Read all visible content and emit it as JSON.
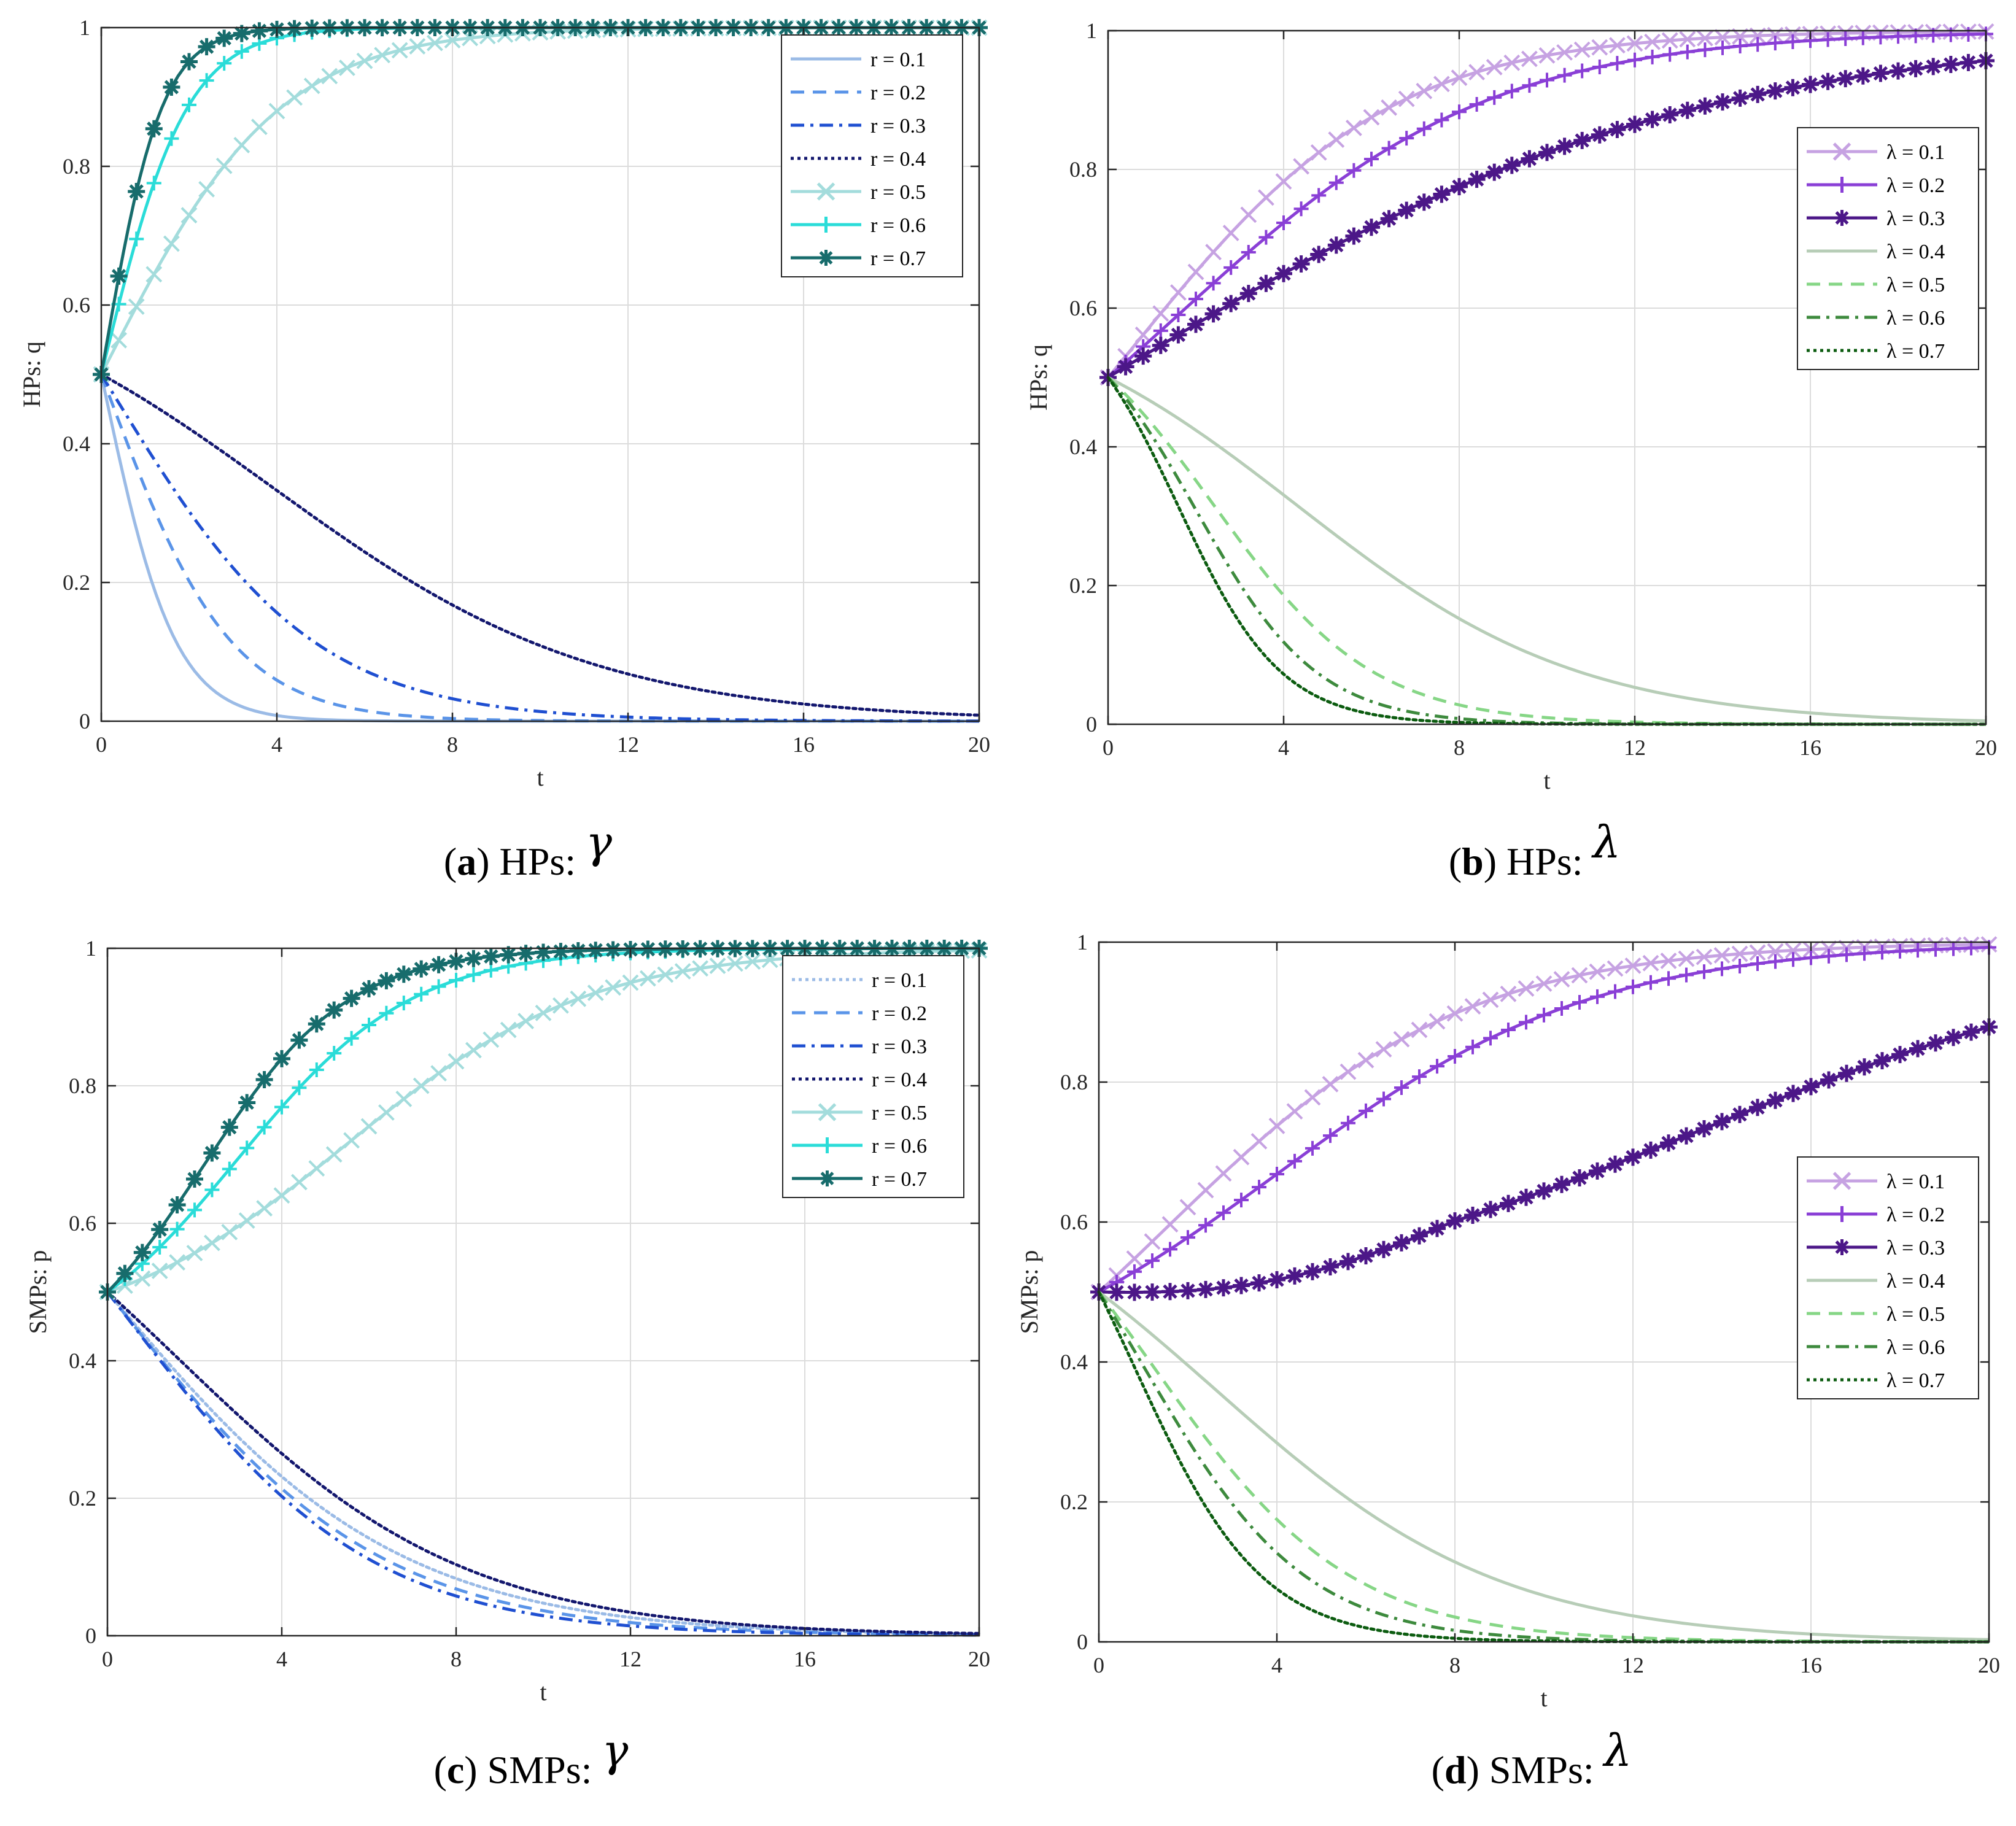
{
  "palette": {
    "r": [
      "#9bbbe6",
      "#5a94e8",
      "#1f4fd1",
      "#13176e",
      "#a3dcdc",
      "#2adcd8",
      "#176c6c"
    ],
    "lambda": [
      "#c6a2e2",
      "#8a3fd6",
      "#4c1788",
      "#b7cdb7",
      "#86d686",
      "#3d8a3d",
      "#0c5c10"
    ]
  },
  "chart_data": [
    {
      "id": "a",
      "type": "line",
      "caption": {
        "letter": "a",
        "text": "HPs:",
        "symbol": "γ"
      },
      "xlabel": "t",
      "ylabel": "HPs: q",
      "xlim": [
        0,
        20
      ],
      "ylim": [
        0,
        1
      ],
      "xticks": [
        "0",
        "4",
        "8",
        "12",
        "16",
        "20"
      ],
      "yticks": [
        "0",
        "0.2",
        "0.4",
        "0.6",
        "0.8",
        "1"
      ],
      "grid": true,
      "legend_position": "top-right",
      "series": [
        {
          "name": "r = 0.1",
          "color": "#9bbbe6",
          "dash": "solid",
          "marker": "none",
          "kind": "decay",
          "k": 1.2,
          "alpha": 0.0
        },
        {
          "name": "r = 0.2",
          "color": "#5a94e8",
          "dash": "dash",
          "marker": "none",
          "kind": "decay",
          "k": 0.7,
          "alpha": 0.1
        },
        {
          "name": "r = 0.3",
          "color": "#1f4fd1",
          "dash": "dashdot",
          "marker": "none",
          "kind": "decay",
          "k": 0.43,
          "alpha": 0.2
        },
        {
          "name": "r = 0.4",
          "color": "#13176e",
          "dash": "dot",
          "marker": "none",
          "kind": "decay",
          "k": 0.27,
          "alpha": 3.9
        },
        {
          "name": "r = 0.5",
          "color": "#a3dcdc",
          "dash": "solid",
          "marker": "x",
          "kind": "grow",
          "k": 0.5,
          "alpha": 0.05
        },
        {
          "name": "r = 0.6",
          "color": "#2adcd8",
          "dash": "solid",
          "marker": "plus",
          "kind": "grow",
          "k": 1.05,
          "alpha": 0.05
        },
        {
          "name": "r = 0.7",
          "color": "#176c6c",
          "dash": "solid",
          "marker": "star",
          "kind": "grow",
          "k": 1.5,
          "alpha": 0.05
        }
      ]
    },
    {
      "id": "b",
      "type": "line",
      "caption": {
        "letter": "b",
        "text": "HPs:",
        "symbol": "λ"
      },
      "xlabel": "t",
      "ylabel": "HPs: q",
      "xlim": [
        0,
        20
      ],
      "ylim": [
        0,
        1
      ],
      "xticks": [
        "0",
        "4",
        "8",
        "12",
        "16",
        "20"
      ],
      "yticks": [
        "0",
        "0.2",
        "0.4",
        "0.6",
        "0.8",
        "1"
      ],
      "grid": true,
      "legend_position": "top-right",
      "series": [
        {
          "name": "λ = 0.1",
          "color": "#c6a2e2",
          "dash": "solid",
          "marker": "x",
          "kind": "grow",
          "k": 0.34,
          "alpha": 0.6
        },
        {
          "name": "λ = 0.2",
          "color": "#8a3fd6",
          "dash": "solid",
          "marker": "plus",
          "kind": "grow",
          "k": 0.28,
          "alpha": 1.6
        },
        {
          "name": "λ = 0.3",
          "color": "#4c1788",
          "dash": "solid",
          "marker": "star",
          "kind": "grow",
          "k": 0.155,
          "alpha": 0.05
        },
        {
          "name": "λ = 0.4",
          "color": "#b7cdb7",
          "dash": "solid",
          "marker": "none",
          "kind": "decay",
          "k": 0.31,
          "alpha": 4.3
        },
        {
          "name": "λ = 0.5",
          "color": "#86d686",
          "dash": "dash",
          "marker": "none",
          "kind": "decay",
          "k": 0.55,
          "alpha": 2.4
        },
        {
          "name": "λ = 0.6",
          "color": "#3d8a3d",
          "dash": "dashdot",
          "marker": "none",
          "kind": "decay",
          "k": 0.72,
          "alpha": 2.0
        },
        {
          "name": "λ = 0.7",
          "color": "#0c5c10",
          "dash": "dot",
          "marker": "none",
          "kind": "decay",
          "k": 0.85,
          "alpha": 1.6
        }
      ]
    },
    {
      "id": "c",
      "type": "line",
      "caption": {
        "letter": "c",
        "text": "SMPs:",
        "symbol": "γ"
      },
      "xlabel": "t",
      "ylabel": "SMPs: p",
      "xlim": [
        0,
        20
      ],
      "ylim": [
        0,
        1
      ],
      "xticks": [
        "0",
        "4",
        "8",
        "12",
        "16",
        "20"
      ],
      "yticks": [
        "0",
        "0.2",
        "0.4",
        "0.6",
        "0.8",
        "1"
      ],
      "grid": true,
      "legend_position": "top-right",
      "series": [
        {
          "name": "r = 0.1",
          "color": "#9bbbe6",
          "dash": "dot",
          "marker": "none",
          "kind": "decay",
          "k": 0.3,
          "alpha": 0.0
        },
        {
          "name": "r = 0.2",
          "color": "#5a94e8",
          "dash": "dash",
          "marker": "none",
          "kind": "decay",
          "k": 0.33,
          "alpha": 0.15
        },
        {
          "name": "r = 0.3",
          "color": "#1f4fd1",
          "dash": "dashdot",
          "marker": "none",
          "kind": "decay",
          "k": 0.36,
          "alpha": 0.5
        },
        {
          "name": "r = 0.4",
          "color": "#13176e",
          "dash": "dot",
          "marker": "none",
          "kind": "decay",
          "k": 0.3,
          "alpha": 1.6
        },
        {
          "name": "r = 0.5",
          "color": "#a3dcdc",
          "dash": "solid",
          "marker": "x",
          "kind": "grow",
          "k": 0.36,
          "alpha": 5.5
        },
        {
          "name": "r = 0.6",
          "color": "#2adcd8",
          "dash": "solid",
          "marker": "plus",
          "kind": "grow",
          "k": 0.5,
          "alpha": 3.0
        },
        {
          "name": "r = 0.7",
          "color": "#176c6c",
          "dash": "solid",
          "marker": "star",
          "kind": "grow",
          "k": 0.6,
          "alpha": 2.2
        }
      ]
    },
    {
      "id": "d",
      "type": "line",
      "caption": {
        "letter": "d",
        "text": "SMPs:",
        "symbol": "λ"
      },
      "xlabel": "t",
      "ylabel": "SMPs: p",
      "xlim": [
        0,
        20
      ],
      "ylim": [
        0,
        1
      ],
      "xticks": [
        "0",
        "4",
        "8",
        "12",
        "16",
        "20"
      ],
      "yticks": [
        "0",
        "0.2",
        "0.4",
        "0.6",
        "0.8",
        "1"
      ],
      "grid": true,
      "legend_position": "right",
      "series": [
        {
          "name": "λ = 0.1",
          "color": "#c6a2e2",
          "dash": "solid",
          "marker": "x",
          "kind": "grow",
          "k": 0.3,
          "alpha": 1.5
        },
        {
          "name": "λ = 0.2",
          "color": "#8a3fd6",
          "dash": "solid",
          "marker": "plus",
          "kind": "grow",
          "k": 0.28,
          "alpha": 4.0
        },
        {
          "name": "λ = 0.3",
          "color": "#4c1788",
          "dash": "solid",
          "marker": "star",
          "kind": "dipgrow",
          "k": 0.19,
          "alpha": 13.5
        },
        {
          "name": "λ = 0.4",
          "color": "#b7cdb7",
          "dash": "solid",
          "marker": "none",
          "kind": "decay",
          "k": 0.31,
          "alpha": 2.6
        },
        {
          "name": "λ = 0.5",
          "color": "#86d686",
          "dash": "dash",
          "marker": "none",
          "kind": "decay",
          "k": 0.45,
          "alpha": 1.2
        },
        {
          "name": "λ = 0.6",
          "color": "#3d8a3d",
          "dash": "dashdot",
          "marker": "none",
          "kind": "decay",
          "k": 0.55,
          "alpha": 1.0
        },
        {
          "name": "λ = 0.7",
          "color": "#0c5c10",
          "dash": "dot",
          "marker": "none",
          "kind": "decay",
          "k": 0.7,
          "alpha": 0.8
        }
      ]
    }
  ]
}
